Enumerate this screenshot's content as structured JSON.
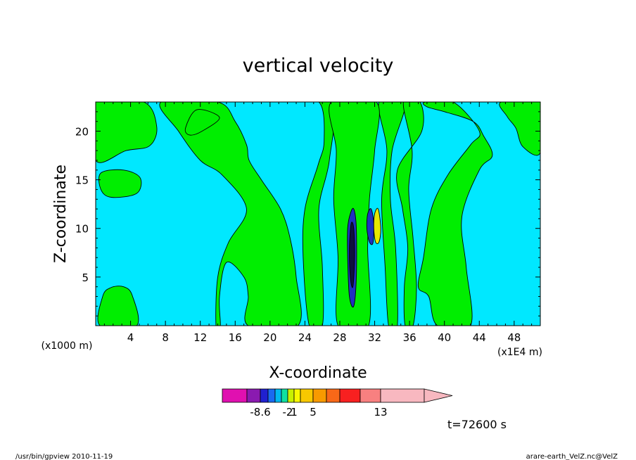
{
  "chart_data": {
    "type": "heatmap",
    "title": "vertical velocity",
    "xlabel": "X-coordinate",
    "ylabel": "Z-coordinate",
    "x_axis_unit_left": "(x1000 m)",
    "x_axis_unit_right": "(x1E4 m)",
    "xlim": [
      0,
      51
    ],
    "ylim": [
      0,
      23
    ],
    "x_ticks": [
      4,
      8,
      12,
      16,
      20,
      24,
      28,
      32,
      36,
      40,
      44,
      48
    ],
    "y_ticks": [
      5,
      10,
      15,
      20
    ],
    "time_label": "t=72600 s",
    "footer_left": "/usr/bin/gpview   2010-11-19",
    "footer_right": "arare-earth_VelZ.nc@VelZ",
    "colorbar": {
      "colors": [
        "#e010b0",
        "#8a1ab0",
        "#2020d0",
        "#1a6af0",
        "#00b8f0",
        "#10e0a0",
        "#c8f000",
        "#f8f800",
        "#f8c800",
        "#f89a00",
        "#f86818",
        "#f82020",
        "#f88080",
        "#f8b8c0"
      ],
      "tick_labels": [
        {
          "label": "-8.6",
          "at_boundary": 2
        },
        {
          "label": "-2",
          "at_boundary": 6
        },
        {
          "label": "1",
          "at_boundary": 7
        },
        {
          "label": "5",
          "at_boundary": 9
        },
        {
          "label": "13",
          "at_boundary": 13
        }
      ],
      "extend": "max"
    },
    "field_colors": {
      "background": "#00e8ff",
      "positive": "#00ee00",
      "strong_up": "#e8e800",
      "strong_down": "#2030c0",
      "core": "#101040"
    },
    "regions": [
      {
        "level": "positive",
        "points": [
          [
            0,
            23
          ],
          [
            5.5,
            23
          ],
          [
            7,
            20.5
          ],
          [
            6.2,
            18.5
          ],
          [
            3.5,
            18
          ],
          [
            0,
            17
          ]
        ]
      },
      {
        "level": "positive",
        "points": [
          [
            0.6,
            15.7
          ],
          [
            3.2,
            16
          ],
          [
            5.1,
            15.2
          ],
          [
            4.7,
            13.6
          ],
          [
            1.8,
            13.2
          ],
          [
            0.6,
            14
          ]
        ]
      },
      {
        "level": "positive",
        "points": [
          [
            7.5,
            23
          ],
          [
            14,
            23
          ],
          [
            16,
            21
          ],
          [
            17.3,
            18.6
          ],
          [
            17.6,
            17
          ],
          [
            19,
            15
          ],
          [
            21.2,
            12
          ],
          [
            22.3,
            9
          ],
          [
            23,
            5
          ],
          [
            23.2,
            0
          ],
          [
            17.5,
            0
          ],
          [
            17.5,
            3
          ],
          [
            17,
            5
          ],
          [
            15,
            6.5
          ],
          [
            14.2,
            3
          ],
          [
            14.3,
            0
          ],
          [
            13.8,
            0
          ],
          [
            14,
            5
          ],
          [
            15.2,
            8.5
          ],
          [
            17.3,
            12
          ],
          [
            14.5,
            15.5
          ],
          [
            12,
            17
          ],
          [
            9.5,
            20
          ]
        ]
      },
      {
        "level": "positive",
        "points": [
          [
            10.3,
            20.3
          ],
          [
            11.6,
            22.2
          ],
          [
            14.2,
            21.4
          ],
          [
            12.2,
            20
          ],
          [
            10.8,
            19.6
          ]
        ]
      },
      {
        "level": "positive",
        "points": [
          [
            0.5,
            0
          ],
          [
            0.8,
            3
          ],
          [
            1.7,
            3.9
          ],
          [
            3.2,
            4
          ],
          [
            4.2,
            3.1
          ],
          [
            4.7,
            0
          ]
        ]
      },
      {
        "level": "positive",
        "points": [
          [
            21.6,
            23
          ],
          [
            25.6,
            23
          ],
          [
            26.2,
            19
          ],
          [
            25.5,
            16.5
          ],
          [
            24,
            12
          ],
          [
            23.8,
            7
          ],
          [
            24.5,
            0
          ],
          [
            26,
            0
          ],
          [
            26,
            6
          ],
          [
            25.6,
            12
          ],
          [
            26.8,
            17
          ],
          [
            27,
            23
          ]
        ]
      },
      {
        "level": "positive",
        "points": [
          [
            32.5,
            23
          ],
          [
            35.5,
            23
          ],
          [
            34,
            18
          ],
          [
            33.8,
            13
          ],
          [
            34.4,
            8
          ],
          [
            34.6,
            0
          ],
          [
            33.6,
            0
          ],
          [
            33.2,
            6
          ],
          [
            32.8,
            13
          ],
          [
            33.4,
            18
          ]
        ]
      },
      {
        "level": "positive",
        "points": [
          [
            35.3,
            23
          ],
          [
            37.2,
            23
          ],
          [
            37.4,
            20
          ],
          [
            34.6,
            16
          ],
          [
            35.2,
            12
          ],
          [
            35.8,
            8
          ],
          [
            35.4,
            4
          ],
          [
            35.5,
            0
          ],
          [
            36.4,
            0
          ],
          [
            36.8,
            4
          ],
          [
            36.4,
            9
          ],
          [
            35.9,
            14
          ],
          [
            36.3,
            18
          ]
        ]
      },
      {
        "level": "positive",
        "points": [
          [
            37.8,
            23
          ],
          [
            41,
            23
          ],
          [
            44,
            20
          ],
          [
            43,
            18.6
          ],
          [
            40.4,
            15.5
          ],
          [
            38.5,
            12
          ],
          [
            37.6,
            7
          ],
          [
            37,
            4
          ],
          [
            38.2,
            3
          ],
          [
            39.2,
            0
          ],
          [
            43,
            0
          ],
          [
            42.5,
            6
          ],
          [
            42,
            11.2
          ],
          [
            44,
            16
          ],
          [
            45.5,
            17.5
          ],
          [
            44.5,
            19.5
          ],
          [
            43.3,
            21
          ],
          [
            40,
            22
          ],
          [
            38,
            22.5
          ]
        ]
      },
      {
        "level": "positive",
        "points": [
          [
            46.5,
            23
          ],
          [
            51,
            23
          ],
          [
            51,
            17.8
          ],
          [
            49,
            18.4
          ],
          [
            48.2,
            20.3
          ],
          [
            47.2,
            21.5
          ]
        ]
      },
      {
        "level": "positive",
        "points": [
          [
            27,
            23
          ],
          [
            32.2,
            23
          ],
          [
            32,
            18
          ],
          [
            31.4,
            13
          ],
          [
            31.2,
            8
          ],
          [
            31.3,
            0
          ],
          [
            27.8,
            0
          ],
          [
            27.8,
            7
          ],
          [
            27.3,
            13
          ],
          [
            27.6,
            18
          ]
        ]
      },
      {
        "level": "strong_down",
        "points": [
          [
            29.2,
            11.5
          ],
          [
            29.6,
            12
          ],
          [
            29.9,
            10
          ],
          [
            29.9,
            5
          ],
          [
            29.6,
            2
          ],
          [
            29.1,
            3
          ],
          [
            28.9,
            7
          ],
          [
            28.9,
            10
          ]
        ]
      },
      {
        "level": "core",
        "points": [
          [
            29.3,
            10.5
          ],
          [
            29.6,
            10
          ],
          [
            29.7,
            7
          ],
          [
            29.5,
            4
          ],
          [
            29.2,
            5
          ],
          [
            29.1,
            8
          ]
        ]
      },
      {
        "level": "strong_down",
        "points": [
          [
            31.2,
            11.5
          ],
          [
            31.6,
            12
          ],
          [
            31.9,
            10.5
          ],
          [
            31.8,
            8.5
          ],
          [
            31.4,
            8.6
          ],
          [
            31.1,
            10
          ]
        ]
      },
      {
        "level": "strong_up",
        "points": [
          [
            32,
            11.5
          ],
          [
            32.4,
            12
          ],
          [
            32.7,
            10
          ],
          [
            32.5,
            8.6
          ],
          [
            32.1,
            8.6
          ],
          [
            31.9,
            10
          ]
        ]
      }
    ]
  }
}
